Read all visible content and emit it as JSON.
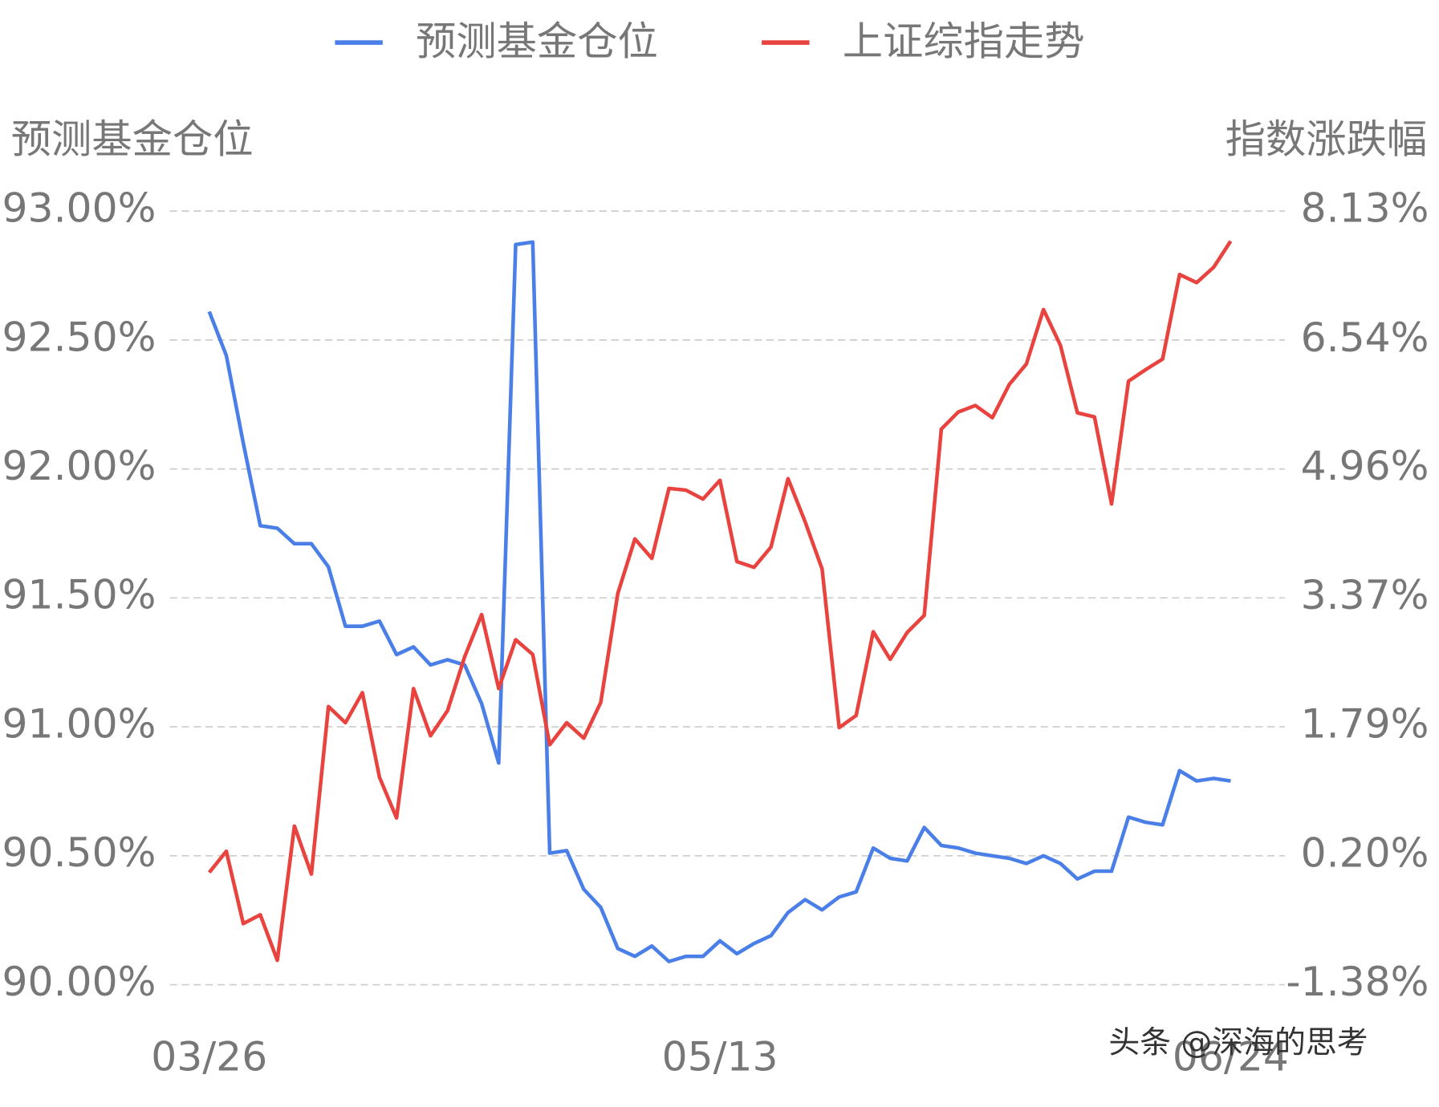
{
  "chart_data": {
    "type": "line",
    "y_label": "预测基金仓位",
    "y2_label": "指数涨跌幅",
    "watermark": "头条 @深海的思考",
    "categories": [
      "03/26",
      null,
      null,
      null,
      null,
      null,
      null,
      null,
      null,
      null,
      null,
      null,
      null,
      null,
      null,
      null,
      null,
      null,
      null,
      null,
      null,
      null,
      null,
      null,
      null,
      null,
      null,
      null,
      null,
      null,
      "05/13",
      null,
      null,
      null,
      null,
      null,
      null,
      null,
      null,
      null,
      null,
      null,
      null,
      null,
      null,
      null,
      null,
      null,
      null,
      null,
      null,
      null,
      null,
      null,
      null,
      null,
      null,
      null,
      null,
      null,
      "06/24"
    ],
    "series": [
      {
        "name": "预测基金仓位",
        "color": "#4a7fe8",
        "values": [
          92.61,
          92.44,
          92.1,
          91.78,
          91.77,
          91.71,
          91.71,
          91.62,
          91.39,
          91.39,
          91.41,
          91.28,
          91.31,
          91.24,
          91.26,
          91.24,
          91.09,
          90.86,
          92.87,
          92.88,
          90.51,
          90.52,
          90.37,
          90.3,
          90.14,
          90.11,
          90.15,
          90.09,
          90.11,
          90.11,
          90.17,
          90.12,
          90.16,
          90.19,
          90.28,
          90.33,
          90.29,
          90.34,
          90.36,
          90.53,
          90.49,
          90.48,
          90.61,
          90.54,
          90.53,
          90.51,
          90.5,
          90.49,
          90.47,
          90.5,
          90.47,
          90.41,
          90.44,
          90.44,
          90.65,
          90.63,
          90.62,
          90.83,
          90.79,
          90.8,
          90.79
        ]
      },
      {
        "name": "上证综指走势",
        "color": "#e8433e",
        "axis": "y2",
        "values": [
          0.0,
          0.26,
          -0.63,
          -0.52,
          -1.08,
          0.57,
          -0.02,
          2.04,
          1.84,
          2.21,
          1.17,
          0.67,
          2.26,
          1.68,
          1.99,
          2.65,
          3.17,
          2.26,
          2.86,
          2.68,
          1.57,
          1.84,
          1.65,
          2.09,
          3.43,
          4.1,
          3.86,
          4.72,
          4.7,
          4.59,
          4.82,
          3.82,
          3.75,
          4.0,
          4.84,
          4.31,
          3.73,
          1.78,
          1.93,
          2.96,
          2.62,
          2.95,
          3.16,
          5.45,
          5.66,
          5.74,
          5.59,
          6.0,
          6.25,
          6.92,
          6.48,
          5.65,
          5.6,
          4.53,
          6.04,
          6.18,
          6.31,
          7.35,
          7.25,
          7.44,
          7.76
        ]
      }
    ],
    "ylim": [
      90,
      93
    ],
    "yticks": [
      {
        "value": 90,
        "label": "90.00%"
      },
      {
        "value": 90.5,
        "label": "90.50%"
      },
      {
        "value": 91,
        "label": "91.00%"
      },
      {
        "value": 91.5,
        "label": "91.50%"
      },
      {
        "value": 92,
        "label": "92.00%"
      },
      {
        "value": 92.5,
        "label": "92.50%"
      },
      {
        "value": 93,
        "label": "93.00%"
      }
    ],
    "y2lim": [
      -1.38,
      8.13
    ],
    "y2ticks": [
      {
        "value": -1.38,
        "label": "-1.38%"
      },
      {
        "value": 0.2,
        "label": "0.20%"
      },
      {
        "value": 1.79,
        "label": "1.79%"
      },
      {
        "value": 3.37,
        "label": "3.37%"
      },
      {
        "value": 4.96,
        "label": "4.96%"
      },
      {
        "value": 6.54,
        "label": "6.54%"
      },
      {
        "value": 8.13,
        "label": "8.13%"
      }
    ],
    "grid": true
  }
}
